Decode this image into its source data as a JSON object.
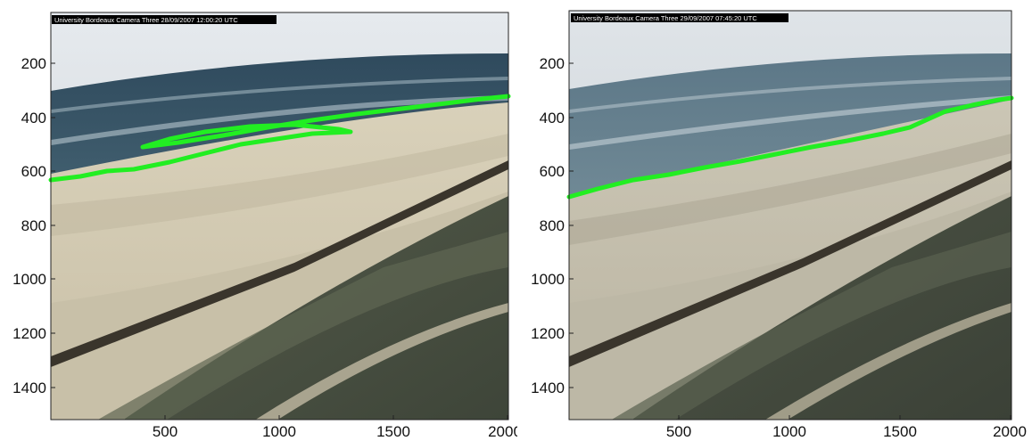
{
  "panels": [
    {
      "id": "left",
      "camera_label": "University Bordeaux Camera Three 28/09/2007 12:00:20 UTC",
      "y_ticks": [
        "200",
        "400",
        "600",
        "800",
        "1000",
        "1200",
        "1400"
      ],
      "x_ticks": [
        "500",
        "1000",
        "1500",
        "2000"
      ],
      "shoreline_color": "#22ee22"
    },
    {
      "id": "right",
      "camera_label": "University Bordeaux Camera Three 29/09/2007 07:45:20 UTC",
      "y_ticks": [
        "200",
        "400",
        "600",
        "800",
        "1000",
        "1200",
        "1400"
      ],
      "x_ticks": [
        "500",
        "1000",
        "1500",
        "2000"
      ],
      "shoreline_color": "#22ee22"
    }
  ]
}
